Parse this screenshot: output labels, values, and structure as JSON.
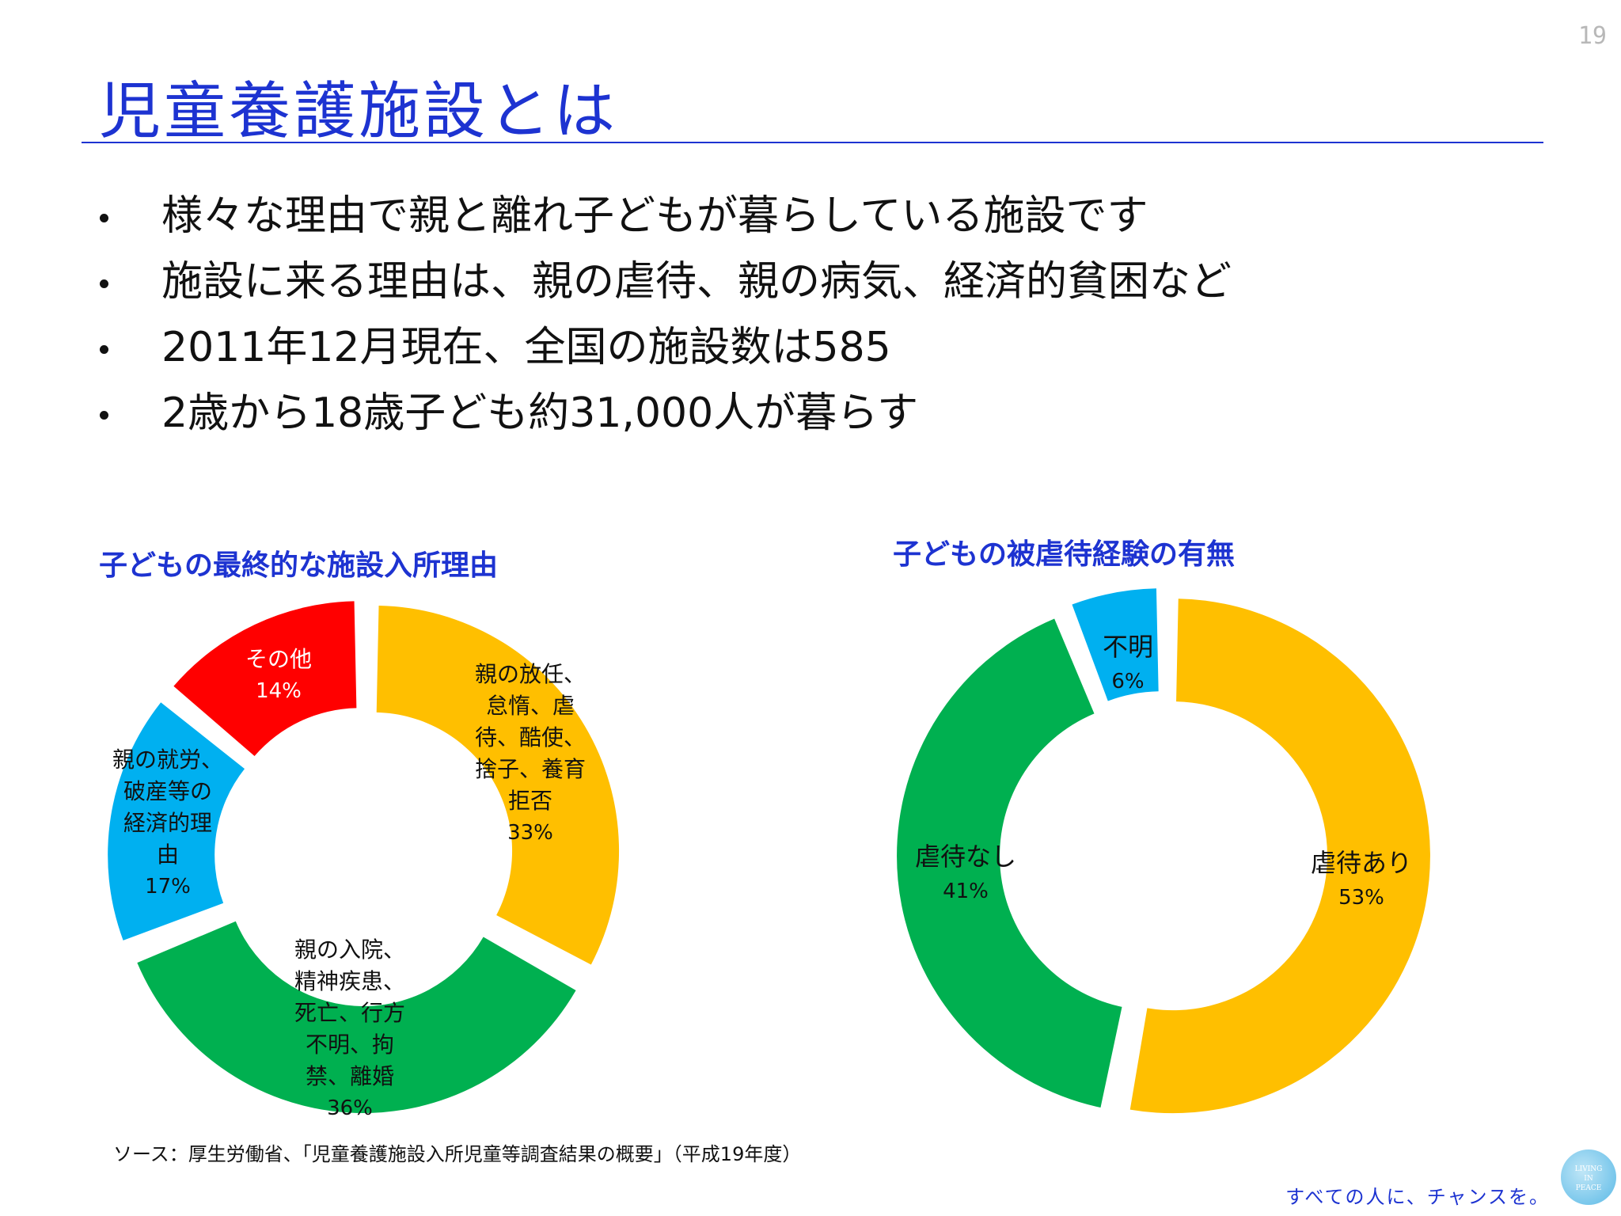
{
  "page_number": "19",
  "title": "児童養護施設とは",
  "bullets": [
    "様々な理由で親と離れ子どもが暮らしている施設です",
    "施設に来る理由は、親の虐待、親の病気、経済的貧困など",
    "2011年12月現在、全国の施設数は585",
    "2歳から18歳子ども約31,000人が暮らす"
  ],
  "chart_data": [
    {
      "type": "pie",
      "title": "子どもの最終的な施設入所理由",
      "donut": true,
      "slices": [
        {
          "label": "親の放任、怠惰、虐待、酷使、捨子、養育拒否",
          "value": 33,
          "pct_label": "33%",
          "color": "#ffbf00"
        },
        {
          "label": "親の入院、精神疾患、死亡、行方不明、拘禁、離婚",
          "value": 36,
          "pct_label": "36%",
          "color": "#00b050"
        },
        {
          "label": "親の就労、破産等の経済的理由",
          "value": 17,
          "pct_label": "17%",
          "color": "#00b0f0"
        },
        {
          "label": "その他",
          "value": 14,
          "pct_label": "14%",
          "color": "#ff0000"
        }
      ],
      "label_lines": [
        [
          "親の放任、",
          "怠惰、虐",
          "待、酷使、",
          "捨子、養育",
          "拒否"
        ],
        [
          "親の入院、",
          "精神疾患、",
          "死亡、行方",
          "不明、拘",
          "禁、離婚"
        ],
        [
          "親の就労、",
          "破産等の",
          "経済的理",
          "由"
        ],
        [
          "その他"
        ]
      ]
    },
    {
      "type": "pie",
      "title": "子どもの被虐待経験の有無",
      "donut": true,
      "slices": [
        {
          "label": "虐待あり",
          "value": 53,
          "pct_label": "53%",
          "color": "#ffbf00"
        },
        {
          "label": "虐待なし",
          "value": 41,
          "pct_label": "41%",
          "color": "#00b050"
        },
        {
          "label": "不明",
          "value": 6,
          "pct_label": "6%",
          "color": "#00b0f0"
        }
      ],
      "label_lines": [
        [
          "虐待あり"
        ],
        [
          "虐待なし"
        ],
        [
          "不明"
        ]
      ]
    }
  ],
  "source": "ソース：厚生労働省、「児童養護施設入所児童等調査結果の概要」（平成19年度）",
  "tagline": "すべての人に、チャンスを。",
  "logo_text": [
    "LIVING",
    "IN",
    "PEACE"
  ]
}
